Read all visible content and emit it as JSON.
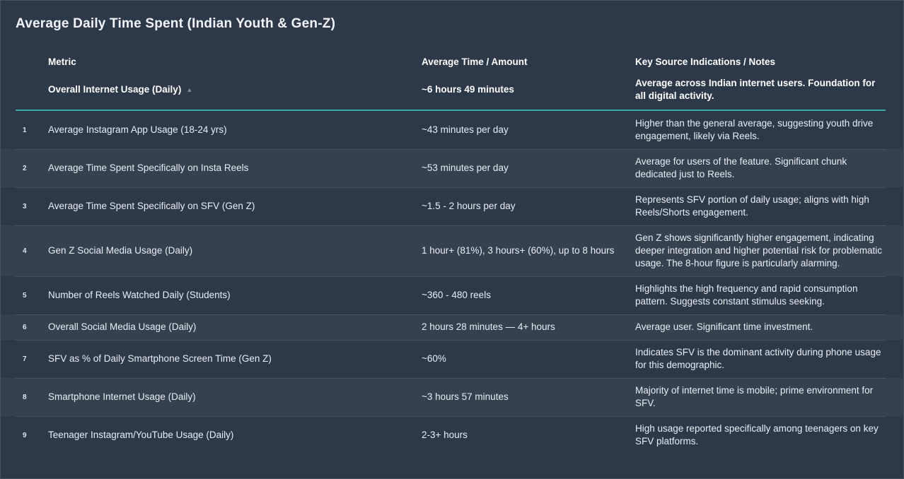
{
  "title": "Average Daily Time Spent (Indian Youth & Gen-Z)",
  "columns": {
    "metric": "Metric",
    "time": "Average Time / Amount",
    "notes": "Key Source Indications / Notes"
  },
  "pinned": {
    "metric": "Overall Internet Usage (Daily)",
    "sort_icon": "▲",
    "time": "~6 hours 49 minutes",
    "notes": "Average across Indian internet users. Foundation for all digital activity."
  },
  "rows": [
    {
      "index": "1",
      "metric": "Average Instagram App Usage (18-24 yrs)",
      "time": "~43 minutes per day",
      "notes": "Higher than the general average, suggesting youth drive engagement, likely via Reels."
    },
    {
      "index": "2",
      "metric": "Average Time Spent Specifically on Insta Reels",
      "time": "~53 minutes per day",
      "notes": "Average for users of the feature. Significant chunk dedicated just to Reels."
    },
    {
      "index": "3",
      "metric": "Average Time Spent Specifically on SFV (Gen Z)",
      "time": "~1.5 - 2 hours per day",
      "notes": "Represents SFV portion of daily usage; aligns with high Reels/Shorts engagement."
    },
    {
      "index": "4",
      "metric": "Gen Z Social Media Usage (Daily)",
      "time": "1 hour+ (81%), 3 hours+ (60%), up to 8 hours",
      "notes": "Gen Z shows significantly higher engagement, indicating deeper integration and higher potential risk for problematic usage. The 8-hour figure is particularly alarming."
    },
    {
      "index": "5",
      "metric": "Number of Reels Watched Daily (Students)",
      "time": "~360 - 480 reels",
      "notes": "Highlights the high frequency and rapid consumption pattern. Suggests constant stimulus seeking."
    },
    {
      "index": "6",
      "metric": "Overall Social Media Usage (Daily)",
      "time": "2 hours 28 minutes — 4+ hours",
      "notes": "Average user. Significant time investment."
    },
    {
      "index": "7",
      "metric": "SFV as % of Daily Smartphone Screen Time (Gen Z)",
      "time": "~60%",
      "notes": "Indicates SFV is the dominant activity during phone usage for this demographic."
    },
    {
      "index": "8",
      "metric": "Smartphone Internet Usage (Daily)",
      "time": "~3 hours 57 minutes",
      "notes": "Majority of internet time is mobile; prime environment for SFV."
    },
    {
      "index": "9",
      "metric": "Teenager Instagram/YouTube Usage (Daily)",
      "time": "2-3+ hours",
      "notes": "High usage reported specifically among teenagers on key SFV platforms."
    }
  ],
  "colors": {
    "background": "#2d3949",
    "row_alt": "#35414f",
    "accent_teal": "#37a8a2",
    "text": "#e9eef4"
  }
}
